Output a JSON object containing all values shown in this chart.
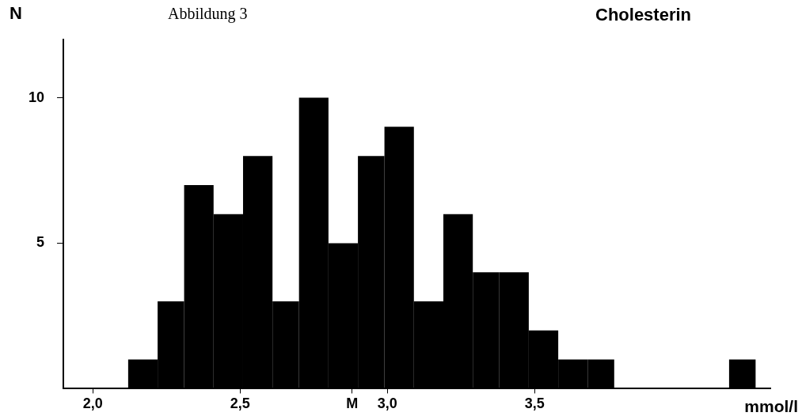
{
  "chart_data": {
    "type": "histogram",
    "title": "Cholesterin",
    "annotations": [
      "Abbildung 3"
    ],
    "xlabel": "mmol/l",
    "ylabel": "N",
    "bins": [
      2.12,
      2.22,
      2.31,
      2.41,
      2.51,
      2.61,
      2.7,
      2.8,
      2.9,
      2.99,
      3.09,
      3.19,
      3.29,
      3.38,
      3.48,
      3.58,
      3.68,
      3.77,
      4.16,
      4.25
    ],
    "values": [
      1,
      3,
      7,
      6,
      8,
      3,
      10,
      5,
      8,
      9,
      3,
      6,
      4,
      4,
      2,
      1,
      1,
      0,
      1
    ],
    "color": "#000000",
    "xlim": [
      1.9,
      4.3
    ],
    "xticks": [
      {
        "value": 2.0,
        "label": "2,0"
      },
      {
        "value": 2.5,
        "label": "2,5"
      },
      {
        "value": 2.88,
        "label": "M"
      },
      {
        "value": 3.0,
        "label": "3,0"
      },
      {
        "value": 3.5,
        "label": "3,5"
      }
    ],
    "ylim": [
      0,
      12
    ],
    "yticks": [
      5,
      10
    ],
    "grid": false,
    "legend": false
  }
}
